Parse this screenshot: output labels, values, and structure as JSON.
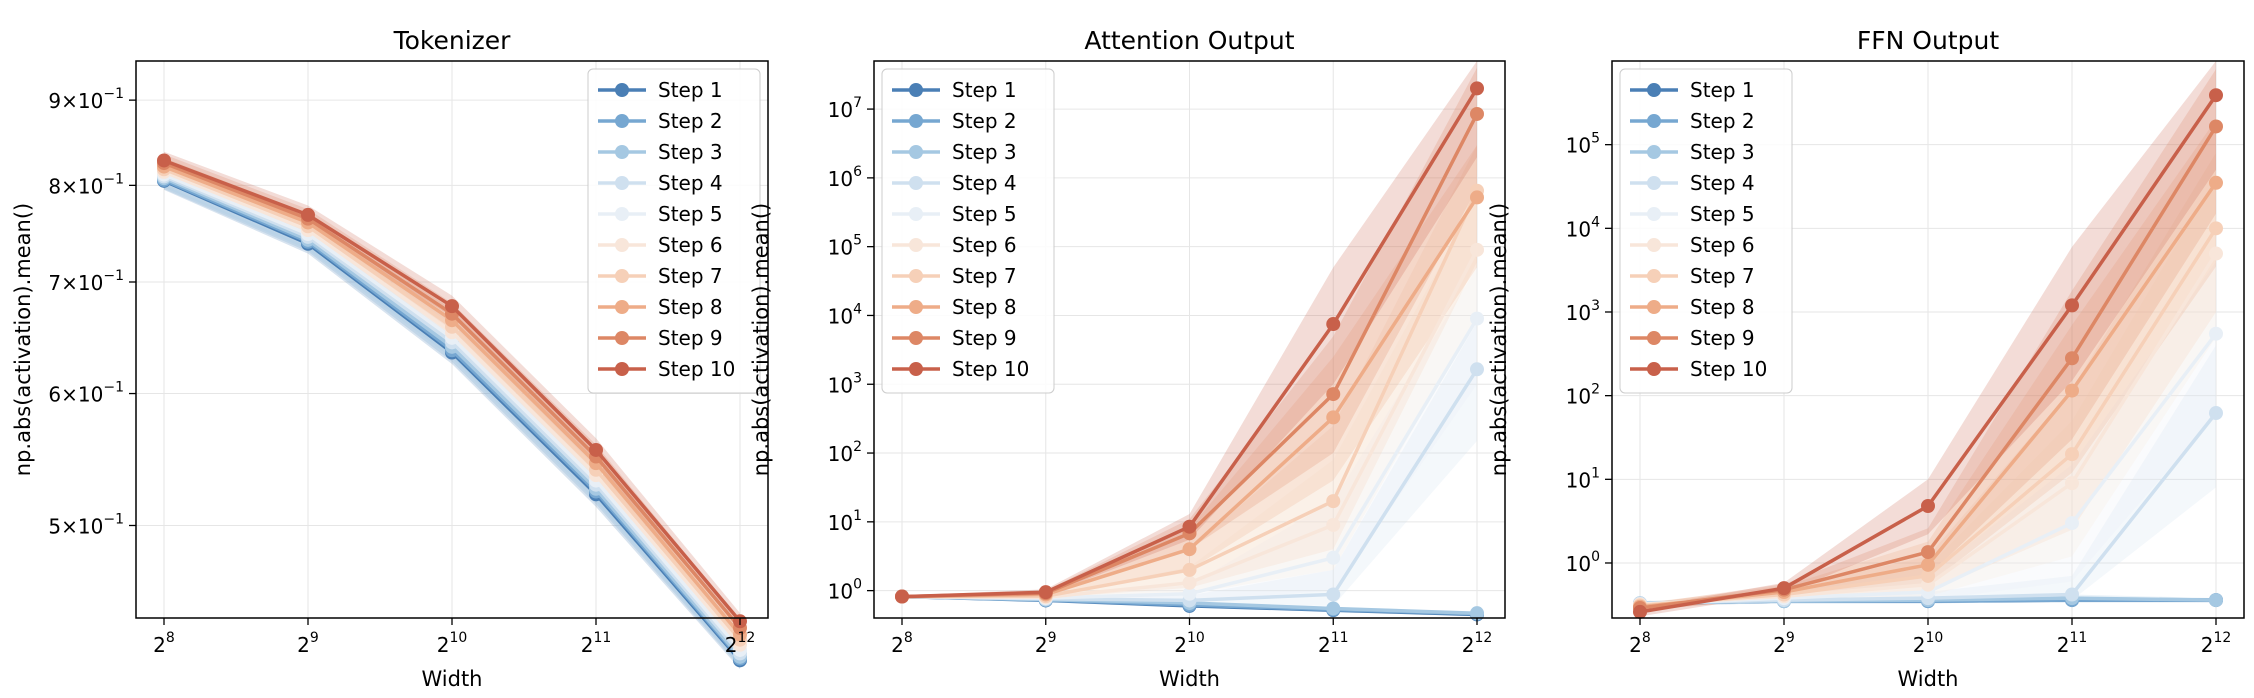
{
  "chart_data": [
    {
      "type": "line",
      "title": "Tokenizer",
      "xlabel": "Width",
      "ylabel": "np.abs(activation).mean()",
      "x": [
        256,
        512,
        1024,
        2048,
        4096
      ],
      "x_ticks": [
        "2^8",
        "2^9",
        "2^10",
        "2^11",
        "2^12"
      ],
      "x_scale": "log2",
      "y_scale": "log",
      "ylim": [
        0.44,
        0.95
      ],
      "y_ticks": [
        {
          "value": 0.5,
          "mant": "5",
          "exp": "−1"
        },
        {
          "value": 0.6,
          "mant": "6",
          "exp": "−1"
        },
        {
          "value": 0.7,
          "mant": "7",
          "exp": "−1"
        },
        {
          "value": 0.8,
          "mant": "8",
          "exp": "−1"
        },
        {
          "value": 0.9,
          "mant": "9",
          "exp": "−1"
        }
      ],
      "grid": true,
      "legend": "top-right",
      "series": [
        {
          "name": "Step 1",
          "color": "#4a7fb5",
          "values": [
            0.805,
            0.738,
            0.635,
            0.522,
            0.415
          ],
          "lower": [
            0.795,
            0.728,
            0.625,
            0.513,
            0.41
          ],
          "upper": [
            0.815,
            0.748,
            0.645,
            0.531,
            0.42
          ]
        },
        {
          "name": "Step 2",
          "color": "#76a7d1",
          "values": [
            0.806,
            0.74,
            0.637,
            0.524,
            0.416
          ],
          "lower": [
            0.796,
            0.73,
            0.627,
            0.515,
            0.411
          ],
          "upper": [
            0.816,
            0.75,
            0.647,
            0.533,
            0.421
          ]
        },
        {
          "name": "Step 3",
          "color": "#a5c8e2",
          "values": [
            0.808,
            0.742,
            0.64,
            0.526,
            0.417
          ],
          "lower": [
            0.798,
            0.732,
            0.63,
            0.517,
            0.412
          ],
          "upper": [
            0.818,
            0.752,
            0.65,
            0.535,
            0.422
          ]
        },
        {
          "name": "Step 4",
          "color": "#cfe0ef",
          "values": [
            0.81,
            0.745,
            0.644,
            0.529,
            0.419
          ],
          "lower": [
            0.8,
            0.735,
            0.634,
            0.52,
            0.414
          ],
          "upper": [
            0.82,
            0.755,
            0.654,
            0.538,
            0.424
          ]
        },
        {
          "name": "Step 5",
          "color": "#e8eff6",
          "values": [
            0.812,
            0.748,
            0.648,
            0.532,
            0.421
          ],
          "lower": [
            0.802,
            0.738,
            0.638,
            0.523,
            0.416
          ],
          "upper": [
            0.822,
            0.758,
            0.658,
            0.541,
            0.426
          ]
        },
        {
          "name": "Step 6",
          "color": "#f8e6da",
          "values": [
            0.815,
            0.752,
            0.653,
            0.536,
            0.424
          ],
          "lower": [
            0.805,
            0.742,
            0.643,
            0.527,
            0.419
          ],
          "upper": [
            0.825,
            0.762,
            0.663,
            0.545,
            0.429
          ]
        },
        {
          "name": "Step 7",
          "color": "#f6d0b8",
          "values": [
            0.818,
            0.756,
            0.658,
            0.54,
            0.427
          ],
          "lower": [
            0.808,
            0.746,
            0.648,
            0.531,
            0.422
          ],
          "upper": [
            0.828,
            0.766,
            0.668,
            0.549,
            0.432
          ]
        },
        {
          "name": "Step 8",
          "color": "#eeac88",
          "values": [
            0.821,
            0.76,
            0.664,
            0.545,
            0.43
          ],
          "lower": [
            0.811,
            0.75,
            0.654,
            0.536,
            0.425
          ],
          "upper": [
            0.831,
            0.77,
            0.674,
            0.554,
            0.435
          ]
        },
        {
          "name": "Step 9",
          "color": "#dd8765",
          "values": [
            0.825,
            0.764,
            0.67,
            0.55,
            0.434
          ],
          "lower": [
            0.815,
            0.754,
            0.66,
            0.541,
            0.429
          ],
          "upper": [
            0.835,
            0.774,
            0.68,
            0.559,
            0.439
          ]
        },
        {
          "name": "Step 10",
          "color": "#c8604a",
          "values": [
            0.828,
            0.768,
            0.677,
            0.555,
            0.438
          ],
          "lower": [
            0.818,
            0.758,
            0.667,
            0.546,
            0.433
          ],
          "upper": [
            0.838,
            0.778,
            0.687,
            0.564,
            0.443
          ]
        }
      ]
    },
    {
      "type": "line",
      "title": "Attention Output",
      "xlabel": "Width",
      "ylabel": "np.abs(activation).mean()",
      "x": [
        256,
        512,
        1024,
        2048,
        4096
      ],
      "x_ticks": [
        "2^8",
        "2^9",
        "2^10",
        "2^11",
        "2^12"
      ],
      "x_scale": "log2",
      "y_scale": "log",
      "ylim": [
        0.4,
        50000000
      ],
      "y_ticks": [
        {
          "value": 1,
          "mant": "10",
          "exp": "0"
        },
        {
          "value": 10,
          "mant": "10",
          "exp": "1"
        },
        {
          "value": 100,
          "mant": "10",
          "exp": "2"
        },
        {
          "value": 1000,
          "mant": "10",
          "exp": "3"
        },
        {
          "value": 10000,
          "mant": "10",
          "exp": "4"
        },
        {
          "value": 100000,
          "mant": "10",
          "exp": "5"
        },
        {
          "value": 1000000,
          "mant": "10",
          "exp": "6"
        },
        {
          "value": 10000000,
          "mant": "10",
          "exp": "7"
        }
      ],
      "grid": true,
      "legend": "top-left",
      "series": [
        {
          "name": "Step 1",
          "color": "#4a7fb5",
          "values": [
            0.82,
            0.72,
            0.6,
            0.52,
            0.45
          ],
          "lower": [
            0.8,
            0.7,
            0.58,
            0.5,
            0.43
          ],
          "upper": [
            0.84,
            0.74,
            0.62,
            0.54,
            0.47
          ]
        },
        {
          "name": "Step 2",
          "color": "#76a7d1",
          "values": [
            0.82,
            0.73,
            0.62,
            0.53,
            0.46
          ],
          "lower": [
            0.8,
            0.71,
            0.6,
            0.51,
            0.44
          ],
          "upper": [
            0.84,
            0.75,
            0.64,
            0.55,
            0.48
          ]
        },
        {
          "name": "Step 3",
          "color": "#a5c8e2",
          "values": [
            0.82,
            0.74,
            0.66,
            0.55,
            0.47
          ],
          "lower": [
            0.8,
            0.72,
            0.63,
            0.52,
            0.45
          ],
          "upper": [
            0.84,
            0.76,
            0.69,
            0.58,
            0.49
          ]
        },
        {
          "name": "Step 4",
          "color": "#cfe0ef",
          "values": [
            0.82,
            0.76,
            0.72,
            0.88,
            1650
          ],
          "lower": [
            0.8,
            0.72,
            0.62,
            0.6,
            150
          ],
          "upper": [
            0.84,
            0.8,
            0.85,
            2.0,
            8000
          ]
        },
        {
          "name": "Step 5",
          "color": "#e8eff6",
          "values": [
            0.82,
            0.78,
            0.9,
            3.0,
            9000
          ],
          "lower": [
            0.8,
            0.74,
            0.7,
            1.0,
            1000
          ],
          "upper": [
            0.84,
            0.82,
            1.2,
            20,
            50000
          ]
        },
        {
          "name": "Step 6",
          "color": "#f8e6da",
          "values": [
            0.82,
            0.8,
            1.3,
            9.0,
            90000
          ],
          "lower": [
            0.8,
            0.76,
            0.9,
            2.0,
            10000
          ],
          "upper": [
            0.84,
            0.84,
            2.2,
            80,
            500000
          ]
        },
        {
          "name": "Step 7",
          "color": "#f6d0b8",
          "values": [
            0.82,
            0.83,
            2.0,
            20,
            650000
          ],
          "lower": [
            0.8,
            0.78,
            1.1,
            4.0,
            60000
          ],
          "upper": [
            0.84,
            0.9,
            4.0,
            250,
            3000000
          ]
        },
        {
          "name": "Step 8",
          "color": "#eeac88",
          "values": [
            0.82,
            0.88,
            4.0,
            330,
            520000
          ],
          "lower": [
            0.8,
            0.8,
            2.0,
            40,
            50000
          ],
          "upper": [
            0.84,
            0.96,
            8.0,
            2500,
            3000000
          ]
        },
        {
          "name": "Step 9",
          "color": "#dd8765",
          "values": [
            0.82,
            0.92,
            6.8,
            720,
            8500000
          ],
          "lower": [
            0.8,
            0.84,
            4.0,
            100,
            700000
          ],
          "upper": [
            0.84,
            1.0,
            11,
            5000,
            40000000
          ]
        },
        {
          "name": "Step 10",
          "color": "#c8604a",
          "values": [
            0.82,
            0.95,
            8.5,
            7500,
            20000000
          ],
          "lower": [
            0.8,
            0.86,
            5.5,
            1000,
            2000000
          ],
          "upper": [
            0.84,
            1.05,
            13,
            50000,
            50000000
          ]
        }
      ]
    },
    {
      "type": "line",
      "title": "FFN Output",
      "xlabel": "Width",
      "ylabel": "np.abs(activation).mean()",
      "x": [
        256,
        512,
        1024,
        2048,
        4096
      ],
      "x_ticks": [
        "2^8",
        "2^9",
        "2^10",
        "2^11",
        "2^12"
      ],
      "x_scale": "log2",
      "y_scale": "log",
      "ylim": [
        0.22,
        1000000
      ],
      "y_ticks": [
        {
          "value": 1,
          "mant": "10",
          "exp": "0"
        },
        {
          "value": 10,
          "mant": "10",
          "exp": "1"
        },
        {
          "value": 100,
          "mant": "10",
          "exp": "2"
        },
        {
          "value": 1000,
          "mant": "10",
          "exp": "3"
        },
        {
          "value": 10000,
          "mant": "10",
          "exp": "4"
        },
        {
          "value": 100000,
          "mant": "10",
          "exp": "5"
        }
      ],
      "grid": true,
      "legend": "top-left",
      "series": [
        {
          "name": "Step 1",
          "color": "#4a7fb5",
          "values": [
            0.33,
            0.35,
            0.35,
            0.36,
            0.36
          ],
          "lower": [
            0.31,
            0.33,
            0.33,
            0.34,
            0.34
          ],
          "upper": [
            0.35,
            0.37,
            0.37,
            0.38,
            0.38
          ]
        },
        {
          "name": "Step 2",
          "color": "#76a7d1",
          "values": [
            0.33,
            0.35,
            0.35,
            0.36,
            0.36
          ],
          "lower": [
            0.31,
            0.33,
            0.33,
            0.34,
            0.34
          ],
          "upper": [
            0.35,
            0.37,
            0.37,
            0.38,
            0.38
          ]
        },
        {
          "name": "Step 3",
          "color": "#a5c8e2",
          "values": [
            0.33,
            0.35,
            0.36,
            0.38,
            0.36
          ],
          "lower": [
            0.31,
            0.33,
            0.33,
            0.35,
            0.34
          ],
          "upper": [
            0.35,
            0.37,
            0.39,
            0.42,
            0.38
          ]
        },
        {
          "name": "Step 4",
          "color": "#cfe0ef",
          "values": [
            0.33,
            0.36,
            0.38,
            0.42,
            62
          ],
          "lower": [
            0.31,
            0.33,
            0.34,
            0.36,
            8.0
          ],
          "upper": [
            0.35,
            0.39,
            0.45,
            0.7,
            400
          ]
        },
        {
          "name": "Step 5",
          "color": "#e8eff6",
          "values": [
            0.32,
            0.38,
            0.45,
            3.0,
            550
          ],
          "lower": [
            0.3,
            0.33,
            0.36,
            0.6,
            60
          ],
          "upper": [
            0.34,
            0.43,
            0.7,
            15,
            4000
          ]
        },
        {
          "name": "Step 6",
          "color": "#f8e6da",
          "values": [
            0.32,
            0.4,
            0.55,
            9.0,
            5000
          ],
          "lower": [
            0.3,
            0.34,
            0.4,
            1.2,
            500
          ],
          "upper": [
            0.34,
            0.46,
            0.9,
            50,
            40000
          ]
        },
        {
          "name": "Step 7",
          "color": "#f6d0b8",
          "values": [
            0.31,
            0.42,
            0.7,
            20,
            10000
          ],
          "lower": [
            0.29,
            0.35,
            0.45,
            2.5,
            1000
          ],
          "upper": [
            0.33,
            0.5,
            1.2,
            120,
            80000
          ]
        },
        {
          "name": "Step 8",
          "color": "#eeac88",
          "values": [
            0.3,
            0.45,
            0.95,
            115,
            35000
          ],
          "lower": [
            0.27,
            0.38,
            0.55,
            12,
            3500
          ],
          "upper": [
            0.33,
            0.53,
            1.8,
            700,
            200000
          ]
        },
        {
          "name": "Step 9",
          "color": "#dd8765",
          "values": [
            0.29,
            0.48,
            1.35,
            280,
            165000
          ],
          "lower": [
            0.26,
            0.41,
            0.7,
            30,
            15000
          ],
          "upper": [
            0.32,
            0.56,
            2.6,
            1800,
            800000
          ]
        },
        {
          "name": "Step 10",
          "color": "#c8604a",
          "values": [
            0.26,
            0.5,
            4.8,
            1200,
            390000
          ],
          "lower": [
            0.23,
            0.43,
            2.2,
            150,
            50000
          ],
          "upper": [
            0.29,
            0.58,
            10,
            6000,
            1000000
          ]
        }
      ]
    }
  ]
}
